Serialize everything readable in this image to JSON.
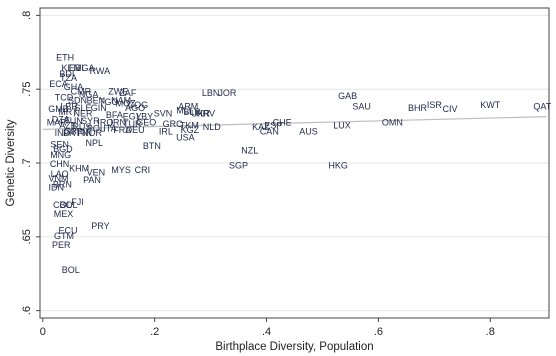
{
  "chart_data": {
    "type": "scatter",
    "xlabel": "Birthplace Diversity, Population",
    "ylabel": "Genetic Diversity",
    "xlim": [
      -0.005,
      0.905
    ],
    "ylim": [
      0.595,
      0.805
    ],
    "x_ticks": [
      {
        "value": 0,
        "label": "0"
      },
      {
        "value": 0.2,
        "label": ".2"
      },
      {
        "value": 0.4,
        "label": ".4"
      },
      {
        "value": 0.6,
        "label": ".6"
      },
      {
        "value": 0.8,
        "label": ".8"
      }
    ],
    "y_ticks": [
      {
        "value": 0.6,
        "label": ".6"
      },
      {
        "value": 0.65,
        "label": ".65"
      },
      {
        "value": 0.7,
        "label": ".7"
      },
      {
        "value": 0.75,
        "label": ".75"
      },
      {
        "value": 0.8,
        "label": ".8"
      }
    ],
    "grid": "horizontal",
    "fit_line": {
      "x": [
        0,
        0.9
      ],
      "y": [
        0.7228,
        0.7314
      ]
    },
    "points": [
      {
        "label": "ETH",
        "x": 0.04,
        "y": 0.771
      },
      {
        "label": "KEN",
        "x": 0.05,
        "y": 0.764
      },
      {
        "label": "ERI",
        "x": 0.06,
        "y": 0.764
      },
      {
        "label": "UGA",
        "x": 0.075,
        "y": 0.764
      },
      {
        "label": "RWA",
        "x": 0.102,
        "y": 0.762
      },
      {
        "label": "BDI",
        "x": 0.043,
        "y": 0.76
      },
      {
        "label": "TZA",
        "x": 0.046,
        "y": 0.757
      },
      {
        "label": "ZWE",
        "x": 0.135,
        "y": 0.748
      },
      {
        "label": "ZAF",
        "x": 0.152,
        "y": 0.747
      },
      {
        "label": "LBN",
        "x": 0.3,
        "y": 0.747
      },
      {
        "label": "JOR",
        "x": 0.33,
        "y": 0.747
      },
      {
        "label": "GAB",
        "x": 0.545,
        "y": 0.745
      },
      {
        "label": "SAU",
        "x": 0.57,
        "y": 0.738
      },
      {
        "label": "BHR",
        "x": 0.67,
        "y": 0.737
      },
      {
        "label": "ISR",
        "x": 0.7,
        "y": 0.739
      },
      {
        "label": "CIV",
        "x": 0.728,
        "y": 0.736
      },
      {
        "label": "KWT",
        "x": 0.8,
        "y": 0.739
      },
      {
        "label": "QAT",
        "x": 0.893,
        "y": 0.738
      },
      {
        "label": "ARM",
        "x": 0.26,
        "y": 0.738
      },
      {
        "label": "MLI",
        "x": 0.252,
        "y": 0.735
      },
      {
        "label": "BLR",
        "x": 0.267,
        "y": 0.734
      },
      {
        "label": "UKR",
        "x": 0.282,
        "y": 0.733
      },
      {
        "label": "HRV",
        "x": 0.291,
        "y": 0.733
      },
      {
        "label": "SVN",
        "x": 0.215,
        "y": 0.733
      },
      {
        "label": "AGO",
        "x": 0.165,
        "y": 0.737
      },
      {
        "label": "OMN",
        "x": 0.625,
        "y": 0.727
      },
      {
        "label": "LUX",
        "x": 0.535,
        "y": 0.725
      },
      {
        "label": "AUS",
        "x": 0.475,
        "y": 0.721
      },
      {
        "label": "KAZ",
        "x": 0.39,
        "y": 0.724
      },
      {
        "label": "CAN",
        "x": 0.405,
        "y": 0.721
      },
      {
        "label": "ESP",
        "x": 0.412,
        "y": 0.725
      },
      {
        "label": "CHE",
        "x": 0.428,
        "y": 0.727
      },
      {
        "label": "USA",
        "x": 0.255,
        "y": 0.717
      },
      {
        "label": "IRL",
        "x": 0.22,
        "y": 0.721
      },
      {
        "label": "KGZ",
        "x": 0.263,
        "y": 0.722
      },
      {
        "label": "NLD",
        "x": 0.302,
        "y": 0.724
      },
      {
        "label": "GRC",
        "x": 0.232,
        "y": 0.726
      },
      {
        "label": "TKM",
        "x": 0.262,
        "y": 0.725
      },
      {
        "label": "BTN",
        "x": 0.195,
        "y": 0.711
      },
      {
        "label": "NZL",
        "x": 0.37,
        "y": 0.708
      },
      {
        "label": "SGP",
        "x": 0.35,
        "y": 0.698
      },
      {
        "label": "HKG",
        "x": 0.528,
        "y": 0.698
      },
      {
        "label": "NPL",
        "x": 0.092,
        "y": 0.713
      },
      {
        "label": "IND",
        "x": 0.035,
        "y": 0.72
      },
      {
        "label": "PRT",
        "x": 0.052,
        "y": 0.72
      },
      {
        "label": "MAR",
        "x": 0.025,
        "y": 0.727
      },
      {
        "label": "SEN",
        "x": 0.03,
        "y": 0.712
      },
      {
        "label": "BGD",
        "x": 0.036,
        "y": 0.709
      },
      {
        "label": "MNG",
        "x": 0.032,
        "y": 0.705
      },
      {
        "label": "CHN",
        "x": 0.03,
        "y": 0.699
      },
      {
        "label": "KHM",
        "x": 0.065,
        "y": 0.696
      },
      {
        "label": "VEN",
        "x": 0.095,
        "y": 0.693
      },
      {
        "label": "MYS",
        "x": 0.14,
        "y": 0.695
      },
      {
        "label": "CRI",
        "x": 0.178,
        "y": 0.695
      },
      {
        "label": "PAN",
        "x": 0.088,
        "y": 0.688
      },
      {
        "label": "LAO",
        "x": 0.03,
        "y": 0.692
      },
      {
        "label": "VNM",
        "x": 0.028,
        "y": 0.689
      },
      {
        "label": "BRN",
        "x": 0.035,
        "y": 0.685
      },
      {
        "label": "IDN",
        "x": 0.024,
        "y": 0.683
      },
      {
        "label": "FJI",
        "x": 0.062,
        "y": 0.673
      },
      {
        "label": "COL",
        "x": 0.035,
        "y": 0.671
      },
      {
        "label": "BOL",
        "x": 0.046,
        "y": 0.671
      },
      {
        "label": "MEX",
        "x": 0.037,
        "y": 0.665
      },
      {
        "label": "PRY",
        "x": 0.103,
        "y": 0.657
      },
      {
        "label": "ECU",
        "x": 0.045,
        "y": 0.654
      },
      {
        "label": "GTM",
        "x": 0.038,
        "y": 0.65
      },
      {
        "label": "PER",
        "x": 0.033,
        "y": 0.644
      },
      {
        "label": "BOL",
        "x": 0.05,
        "y": 0.627
      },
      {
        "label": "ECA",
        "x": 0.028,
        "y": 0.753
      },
      {
        "label": "GHA",
        "x": 0.055,
        "y": 0.751
      },
      {
        "label": "CMR",
        "x": 0.068,
        "y": 0.748
      },
      {
        "label": "NGA",
        "x": 0.082,
        "y": 0.746
      },
      {
        "label": "TCD",
        "x": 0.038,
        "y": 0.744
      },
      {
        "label": "SDN",
        "x": 0.062,
        "y": 0.742
      },
      {
        "label": "BEN",
        "x": 0.095,
        "y": 0.742
      },
      {
        "label": "TGO",
        "x": 0.118,
        "y": 0.741
      },
      {
        "label": "NAM",
        "x": 0.14,
        "y": 0.742
      },
      {
        "label": "MOZ",
        "x": 0.148,
        "y": 0.74
      },
      {
        "label": "COG",
        "x": 0.17,
        "y": 0.739
      },
      {
        "label": "LBR",
        "x": 0.047,
        "y": 0.738
      },
      {
        "label": "SLE",
        "x": 0.072,
        "y": 0.737
      },
      {
        "label": "GIN",
        "x": 0.1,
        "y": 0.737
      },
      {
        "label": "GMB",
        "x": 0.028,
        "y": 0.736
      },
      {
        "label": "MRT",
        "x": 0.045,
        "y": 0.734
      },
      {
        "label": "NER",
        "x": 0.072,
        "y": 0.733
      },
      {
        "label": "BFA",
        "x": 0.128,
        "y": 0.732
      },
      {
        "label": "EGY",
        "x": 0.16,
        "y": 0.731
      },
      {
        "label": "LBY",
        "x": 0.182,
        "y": 0.731
      },
      {
        "label": "DZA",
        "x": 0.032,
        "y": 0.729
      },
      {
        "label": "TUN",
        "x": 0.055,
        "y": 0.728
      },
      {
        "label": "SYR",
        "x": 0.085,
        "y": 0.728
      },
      {
        "label": "IRQ",
        "x": 0.112,
        "y": 0.727
      },
      {
        "label": "IRN",
        "x": 0.135,
        "y": 0.727
      },
      {
        "label": "TUR",
        "x": 0.16,
        "y": 0.726
      },
      {
        "label": "GEO",
        "x": 0.185,
        "y": 0.727
      },
      {
        "label": "AZE",
        "x": 0.045,
        "y": 0.725
      },
      {
        "label": "RUS",
        "x": 0.07,
        "y": 0.724
      },
      {
        "label": "POL",
        "x": 0.095,
        "y": 0.723
      },
      {
        "label": "ITA",
        "x": 0.12,
        "y": 0.723
      },
      {
        "label": "FRA",
        "x": 0.142,
        "y": 0.722
      },
      {
        "label": "DEU",
        "x": 0.165,
        "y": 0.722
      },
      {
        "label": "GBR",
        "x": 0.055,
        "y": 0.721
      },
      {
        "label": "FIN",
        "x": 0.075,
        "y": 0.72
      },
      {
        "label": "NOR",
        "x": 0.088,
        "y": 0.72
      }
    ]
  }
}
